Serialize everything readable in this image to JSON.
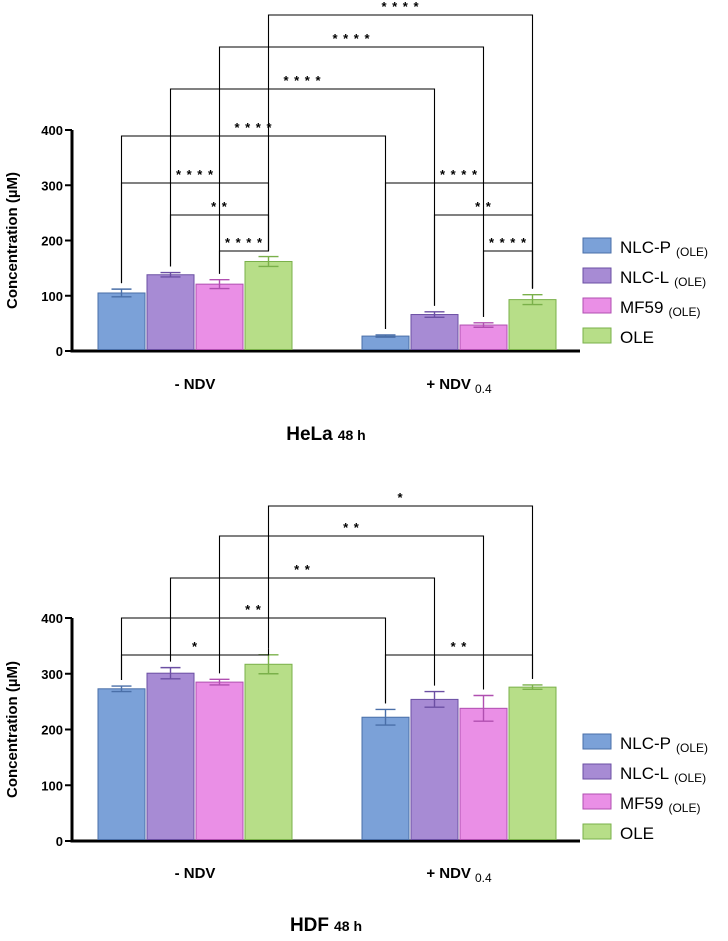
{
  "chart_data": [
    {
      "type": "bar",
      "title": "HeLa",
      "title_suffix": "48 h",
      "ylabel": "Concentration (µM)",
      "xlabel": "",
      "ylim": [
        0,
        400
      ],
      "yticks": [
        0,
        100,
        200,
        300,
        400
      ],
      "categories": [
        {
          "label": "- NDV",
          "sub": ""
        },
        {
          "label": "+ NDV",
          "sub": "0.4"
        }
      ],
      "series": [
        {
          "name": "NLC-P",
          "sub": "(OLE)",
          "color": "#7ba1d8",
          "edge": "#4a6fa8",
          "values": [
            105,
            27
          ],
          "errors": [
            7,
            2
          ]
        },
        {
          "name": "NLC-L",
          "sub": "(OLE)",
          "color": "#a78bd4",
          "edge": "#6b4fa3",
          "values": [
            138,
            66
          ],
          "errors": [
            4,
            5
          ]
        },
        {
          "name": "MF59",
          "sub": "(OLE)",
          "color": "#ea8fe6",
          "edge": "#b04fb0",
          "values": [
            121,
            47
          ],
          "errors": [
            8,
            4
          ]
        },
        {
          "name": "OLE",
          "sub": "",
          "color": "#b7de88",
          "edge": "#7ab04a",
          "values": [
            162,
            93
          ],
          "errors": [
            9,
            9
          ]
        }
      ],
      "significance": [
        {
          "from": [
            0,
            3
          ],
          "to": [
            1,
            3
          ],
          "label": "****"
        },
        {
          "from": [
            0,
            2
          ],
          "to": [
            1,
            2
          ],
          "label": "****"
        },
        {
          "from": [
            0,
            1
          ],
          "to": [
            1,
            1
          ],
          "label": "****"
        },
        {
          "from": [
            0,
            0
          ],
          "to": [
            1,
            0
          ],
          "label": "****"
        },
        {
          "from": [
            0,
            0
          ],
          "to": [
            0,
            3
          ],
          "label": "****"
        },
        {
          "from": [
            0,
            1
          ],
          "to": [
            0,
            3
          ],
          "label": "**"
        },
        {
          "from": [
            0,
            2
          ],
          "to": [
            0,
            3
          ],
          "label": "****"
        },
        {
          "from": [
            1,
            0
          ],
          "to": [
            1,
            3
          ],
          "label": "****"
        },
        {
          "from": [
            1,
            1
          ],
          "to": [
            1,
            3
          ],
          "label": "**"
        },
        {
          "from": [
            1,
            2
          ],
          "to": [
            1,
            3
          ],
          "label": "****"
        }
      ]
    },
    {
      "type": "bar",
      "title": "HDF",
      "title_suffix": "48 h",
      "ylabel": "Concentration (µM)",
      "xlabel": "",
      "ylim": [
        0,
        400
      ],
      "yticks": [
        0,
        100,
        200,
        300,
        400
      ],
      "categories": [
        {
          "label": "- NDV",
          "sub": ""
        },
        {
          "label": "+ NDV",
          "sub": "0.4"
        }
      ],
      "series": [
        {
          "name": "NLC-P",
          "sub": "(OLE)",
          "color": "#7ba1d8",
          "edge": "#4a6fa8",
          "values": [
            273,
            222
          ],
          "errors": [
            5,
            14
          ]
        },
        {
          "name": "NLC-L",
          "sub": "(OLE)",
          "color": "#a78bd4",
          "edge": "#6b4fa3",
          "values": [
            301,
            254
          ],
          "errors": [
            10,
            14
          ]
        },
        {
          "name": "MF59",
          "sub": "(OLE)",
          "color": "#ea8fe6",
          "edge": "#b04fb0",
          "values": [
            285,
            238
          ],
          "errors": [
            5,
            23
          ]
        },
        {
          "name": "OLE",
          "sub": "",
          "color": "#b7de88",
          "edge": "#7ab04a",
          "values": [
            317,
            276
          ],
          "errors": [
            17,
            4
          ]
        }
      ],
      "significance": [
        {
          "from": [
            0,
            3
          ],
          "to": [
            1,
            3
          ],
          "label": "*"
        },
        {
          "from": [
            0,
            2
          ],
          "to": [
            1,
            2
          ],
          "label": "**"
        },
        {
          "from": [
            0,
            1
          ],
          "to": [
            1,
            1
          ],
          "label": "**"
        },
        {
          "from": [
            0,
            0
          ],
          "to": [
            1,
            0
          ],
          "label": "**"
        },
        {
          "from": [
            0,
            0
          ],
          "to": [
            0,
            3
          ],
          "label": "*"
        },
        {
          "from": [
            1,
            0
          ],
          "to": [
            1,
            3
          ],
          "label": "**"
        }
      ]
    }
  ]
}
